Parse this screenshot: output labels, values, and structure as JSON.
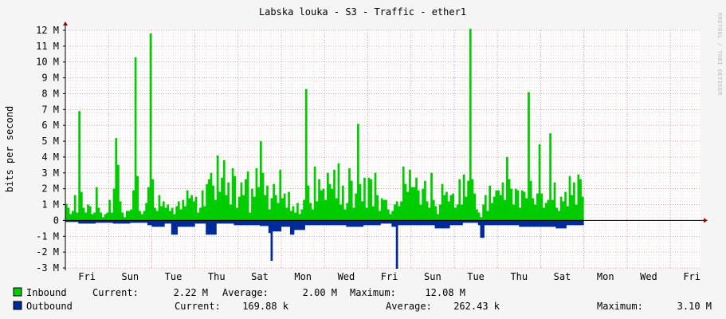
{
  "chart_data": {
    "type": "area",
    "title": "Labska louka - S3 - Traffic - ether1",
    "ylabel": "bits per second",
    "watermark": "RRDTOOL / TOBI OETIKER",
    "ylim": [
      -3000000,
      12000000
    ],
    "y_ticks": [
      {
        "value": 12000000,
        "label": "12 M"
      },
      {
        "value": 11000000,
        "label": "11 M"
      },
      {
        "value": 10000000,
        "label": "10 M"
      },
      {
        "value": 9000000,
        "label": "9 M"
      },
      {
        "value": 8000000,
        "label": "8 M"
      },
      {
        "value": 7000000,
        "label": "7 M"
      },
      {
        "value": 6000000,
        "label": "6 M"
      },
      {
        "value": 5000000,
        "label": "5 M"
      },
      {
        "value": 4000000,
        "label": "4 M"
      },
      {
        "value": 3000000,
        "label": "3 M"
      },
      {
        "value": 2000000,
        "label": "2 M"
      },
      {
        "value": 1000000,
        "label": "1 M"
      },
      {
        "value": 0,
        "label": "0"
      },
      {
        "value": -1000000,
        "label": "-1 M"
      },
      {
        "value": -2000000,
        "label": "-2 M"
      },
      {
        "value": -3000000,
        "label": "-3 M"
      }
    ],
    "x_range": [
      0,
      14.7
    ],
    "x_ticks": [
      {
        "day": 0.5,
        "label": "Fri"
      },
      {
        "day": 1.5,
        "label": "Sun"
      },
      {
        "day": 2.5,
        "label": "Tue"
      },
      {
        "day": 3.5,
        "label": "Thu"
      },
      {
        "day": 4.5,
        "label": "Sat"
      },
      {
        "day": 5.5,
        "label": "Mon"
      },
      {
        "day": 6.5,
        "label": "Wed"
      },
      {
        "day": 7.5,
        "label": "Fri"
      },
      {
        "day": 8.5,
        "label": "Sun"
      },
      {
        "day": 9.5,
        "label": "Tue"
      },
      {
        "day": 10.5,
        "label": "Thu"
      },
      {
        "day": 11.5,
        "label": "Sat"
      },
      {
        "day": 12.5,
        "label": "Mon"
      },
      {
        "day": 13.5,
        "label": "Wed"
      },
      {
        "day": 14.5,
        "label": "Fri"
      }
    ],
    "grid": true,
    "series": [
      {
        "name": "Inbound",
        "color": "#00cc00",
        "samples": [
          [
            0,
            1.05
          ],
          [
            0.05,
            0.8
          ],
          [
            0.1,
            0.4
          ],
          [
            0.15,
            0.6
          ],
          [
            0.2,
            1.6
          ],
          [
            0.25,
            0.5
          ],
          [
            0.3,
            6.9
          ],
          [
            0.35,
            1.8
          ],
          [
            0.4,
            0.8
          ],
          [
            0.45,
            0.5
          ],
          [
            0.5,
            1.0
          ],
          [
            0.55,
            0.9
          ],
          [
            0.6,
            0.4
          ],
          [
            0.65,
            0.5
          ],
          [
            0.7,
            2.1
          ],
          [
            0.75,
            0.8
          ],
          [
            0.8,
            0.5
          ],
          [
            0.85,
            0.2
          ],
          [
            0.9,
            0.4
          ],
          [
            0.95,
            0.5
          ],
          [
            1.0,
            1.3
          ],
          [
            1.05,
            0.5
          ],
          [
            1.1,
            2.0
          ],
          [
            1.15,
            5.2
          ],
          [
            1.2,
            3.5
          ],
          [
            1.25,
            1.2
          ],
          [
            1.3,
            0.5
          ],
          [
            1.35,
            0.2
          ],
          [
            1.4,
            0.6
          ],
          [
            1.45,
            0.6
          ],
          [
            1.5,
            0.7
          ],
          [
            1.55,
            1.9
          ],
          [
            1.6,
            10.3
          ],
          [
            1.65,
            2.8
          ],
          [
            1.7,
            0.6
          ],
          [
            1.75,
            0.4
          ],
          [
            1.8,
            0.6
          ],
          [
            1.85,
            1.1
          ],
          [
            1.9,
            2.1
          ],
          [
            1.95,
            11.8
          ],
          [
            2.0,
            2.6
          ],
          [
            2.05,
            0.8
          ],
          [
            2.1,
            0.6
          ],
          [
            2.15,
            1.6
          ],
          [
            2.2,
            0.9
          ],
          [
            2.25,
            1.2
          ],
          [
            2.3,
            0.8
          ],
          [
            2.35,
            1.0
          ],
          [
            2.4,
            0.6
          ],
          [
            2.45,
            0.8
          ],
          [
            2.5,
            0.4
          ],
          [
            2.55,
            0.9
          ],
          [
            2.6,
            1.2
          ],
          [
            2.65,
            0.7
          ],
          [
            2.7,
            1.3
          ],
          [
            2.75,
            0.9
          ],
          [
            2.8,
            1.9
          ],
          [
            2.85,
            1.4
          ],
          [
            2.9,
            1.6
          ],
          [
            2.95,
            1.2
          ],
          [
            3.0,
            1.5
          ],
          [
            3.05,
            0.5
          ],
          [
            3.1,
            0.8
          ],
          [
            3.15,
            1.9
          ],
          [
            3.2,
            0.9
          ],
          [
            3.25,
            2.3
          ],
          [
            3.3,
            2.6
          ],
          [
            3.35,
            3.0
          ],
          [
            3.4,
            2.2
          ],
          [
            3.45,
            1.3
          ],
          [
            3.5,
            4.1
          ],
          [
            3.55,
            1.8
          ],
          [
            3.6,
            2.7
          ],
          [
            3.65,
            3.8
          ],
          [
            3.7,
            1.6
          ],
          [
            3.75,
            2.4
          ],
          [
            3.8,
            1.0
          ],
          [
            3.85,
            3.3
          ],
          [
            3.9,
            2.8
          ],
          [
            3.95,
            0.8
          ],
          [
            4.0,
            1.5
          ],
          [
            4.05,
            2.4
          ],
          [
            4.1,
            1.6
          ],
          [
            4.15,
            2.6
          ],
          [
            4.2,
            3.1
          ],
          [
            4.25,
            0.5
          ],
          [
            4.3,
            2.0
          ],
          [
            4.35,
            1.5
          ],
          [
            4.4,
            3.3
          ],
          [
            4.45,
            2.1
          ],
          [
            4.5,
            5.0
          ],
          [
            4.55,
            3.0
          ],
          [
            4.6,
            1.6
          ],
          [
            4.65,
            2.2
          ],
          [
            4.7,
            0.7
          ],
          [
            4.75,
            1.4
          ],
          [
            4.8,
            2.3
          ],
          [
            4.85,
            1.6
          ],
          [
            4.9,
            1.1
          ],
          [
            4.95,
            3.2
          ],
          [
            5.0,
            1.4
          ],
          [
            5.05,
            1.7
          ],
          [
            5.1,
            0.8
          ],
          [
            5.15,
            1.8
          ],
          [
            5.2,
            0.6
          ],
          [
            5.25,
            0.9
          ],
          [
            5.3,
            0.5
          ],
          [
            5.35,
            1.1
          ],
          [
            5.4,
            0.4
          ],
          [
            5.45,
            0.7
          ],
          [
            5.5,
            1.3
          ],
          [
            5.55,
            8.3
          ],
          [
            5.6,
            2.2
          ],
          [
            5.65,
            1.1
          ],
          [
            5.7,
            0.7
          ],
          [
            5.75,
            3.4
          ],
          [
            5.8,
            1.2
          ],
          [
            5.85,
            2.6
          ],
          [
            5.9,
            1.9
          ],
          [
            5.95,
            2.0
          ],
          [
            6.0,
            1.3
          ],
          [
            6.05,
            3.0
          ],
          [
            6.1,
            2.3
          ],
          [
            6.15,
            2.0
          ],
          [
            6.2,
            3.2
          ],
          [
            6.25,
            1.4
          ],
          [
            6.3,
            3.6
          ],
          [
            6.35,
            1.0
          ],
          [
            6.4,
            2.2
          ],
          [
            6.45,
            0.7
          ],
          [
            6.5,
            1.1
          ],
          [
            6.55,
            3.3
          ],
          [
            6.6,
            2.5
          ],
          [
            6.65,
            0.8
          ],
          [
            6.7,
            1.7
          ],
          [
            6.75,
            6.1
          ],
          [
            6.8,
            2.3
          ],
          [
            6.85,
            1.2
          ],
          [
            6.9,
            2.7
          ],
          [
            6.95,
            0.8
          ],
          [
            7.0,
            2.7
          ],
          [
            7.05,
            2.6
          ],
          [
            7.1,
            0.9
          ],
          [
            7.15,
            3.0
          ],
          [
            7.2,
            1.6
          ],
          [
            7.25,
            0.6
          ],
          [
            7.3,
            1.4
          ],
          [
            7.35,
            1.3
          ],
          [
            7.4,
            1.3
          ],
          [
            7.45,
            0.7
          ],
          [
            7.5,
            0.4
          ],
          [
            7.55,
            0.6
          ],
          [
            7.6,
            1.0
          ],
          [
            7.65,
            1.2
          ],
          [
            7.7,
            0.9
          ],
          [
            7.75,
            1.2
          ],
          [
            7.8,
            3.4
          ],
          [
            7.85,
            2.3
          ],
          [
            7.9,
            1.8
          ],
          [
            7.95,
            3.2
          ],
          [
            8.0,
            2.1
          ],
          [
            8.05,
            2.1
          ],
          [
            8.1,
            2.7
          ],
          [
            8.15,
            1.9
          ],
          [
            8.2,
            1.0
          ],
          [
            8.25,
            2.0
          ],
          [
            8.3,
            2.5
          ],
          [
            8.35,
            1.2
          ],
          [
            8.4,
            0.8
          ],
          [
            8.45,
            3.0
          ],
          [
            8.5,
            1.3
          ],
          [
            8.55,
            0.9
          ],
          [
            8.6,
            0.4
          ],
          [
            8.65,
            1.0
          ],
          [
            8.7,
            2.3
          ],
          [
            8.75,
            1.6
          ],
          [
            8.8,
            1.8
          ],
          [
            8.85,
            1.2
          ],
          [
            8.9,
            1.6
          ],
          [
            8.95,
            1.7
          ],
          [
            9.0,
            0.8
          ],
          [
            9.05,
            1.0
          ],
          [
            9.1,
            2.6
          ],
          [
            9.15,
            1.0
          ],
          [
            9.2,
            2.9
          ],
          [
            9.25,
            1.5
          ],
          [
            9.3,
            2.5
          ],
          [
            9.35,
            12.1
          ],
          [
            9.4,
            2.6
          ],
          [
            9.45,
            1.7
          ],
          [
            9.5,
            0.7
          ],
          [
            9.55,
            0.5
          ],
          [
            9.6,
            0.2
          ],
          [
            9.65,
            1.0
          ],
          [
            9.7,
            1.6
          ],
          [
            9.75,
            0.6
          ],
          [
            9.8,
            2.2
          ],
          [
            9.85,
            1.1
          ],
          [
            9.9,
            1.5
          ],
          [
            9.95,
            1.9
          ],
          [
            10.0,
            1.9
          ],
          [
            10.05,
            1.6
          ],
          [
            10.1,
            2.4
          ],
          [
            10.15,
            1.3
          ],
          [
            10.2,
            4.0
          ],
          [
            10.25,
            2.6
          ],
          [
            10.3,
            2.0
          ],
          [
            10.35,
            1.0
          ],
          [
            10.4,
            2.0
          ],
          [
            10.45,
            1.9
          ],
          [
            10.5,
            0.8
          ],
          [
            10.55,
            1.9
          ],
          [
            10.6,
            1.8
          ],
          [
            10.65,
            1.4
          ],
          [
            10.7,
            8.1
          ],
          [
            10.75,
            2.5
          ],
          [
            10.8,
            1.4
          ],
          [
            10.85,
            1.0
          ],
          [
            10.9,
            1.7
          ],
          [
            10.95,
            4.8
          ],
          [
            11.0,
            1.7
          ],
          [
            11.05,
            0.8
          ],
          [
            11.1,
            1.1
          ],
          [
            11.15,
            1.3
          ],
          [
            11.2,
            5.5
          ],
          [
            11.25,
            1.3
          ],
          [
            11.3,
            2.4
          ],
          [
            11.35,
            0.8
          ],
          [
            11.4,
            0.6
          ],
          [
            11.45,
            1.5
          ],
          [
            11.5,
            1.2
          ],
          [
            11.55,
            1.8
          ],
          [
            11.6,
            0.9
          ],
          [
            11.65,
            2.8
          ],
          [
            11.7,
            1.6
          ],
          [
            11.75,
            2.4
          ],
          [
            11.8,
            1.0
          ],
          [
            11.85,
            2.9
          ],
          [
            11.9,
            2.6
          ],
          [
            11.95,
            1.5
          ]
        ]
      },
      {
        "name": "Outbound",
        "color": "#002a97",
        "samples": [
          [
            0,
            -0.1
          ],
          [
            0.3,
            -0.2
          ],
          [
            0.7,
            -0.15
          ],
          [
            1.1,
            -0.2
          ],
          [
            1.5,
            -0.15
          ],
          [
            1.9,
            -0.3
          ],
          [
            2.0,
            -0.4
          ],
          [
            2.3,
            -0.2
          ],
          [
            2.45,
            -0.9
          ],
          [
            2.6,
            -0.4
          ],
          [
            3.0,
            -0.2
          ],
          [
            3.25,
            -0.9
          ],
          [
            3.5,
            -0.2
          ],
          [
            3.9,
            -0.3
          ],
          [
            4.2,
            -0.3
          ],
          [
            4.5,
            -0.35
          ],
          [
            4.7,
            -0.8
          ],
          [
            4.75,
            -2.55
          ],
          [
            4.8,
            -0.7
          ],
          [
            5.0,
            -0.4
          ],
          [
            5.2,
            -0.9
          ],
          [
            5.3,
            -0.6
          ],
          [
            5.55,
            -0.3
          ],
          [
            6.0,
            -0.3
          ],
          [
            6.5,
            -0.4
          ],
          [
            6.9,
            -0.3
          ],
          [
            7.3,
            -0.2
          ],
          [
            7.55,
            -0.4
          ],
          [
            7.65,
            -3.05
          ],
          [
            7.7,
            -0.3
          ],
          [
            8.1,
            -0.3
          ],
          [
            8.55,
            -0.5
          ],
          [
            8.9,
            -0.3
          ],
          [
            9.2,
            -0.15
          ],
          [
            9.55,
            -0.3
          ],
          [
            9.6,
            -1.1
          ],
          [
            9.7,
            -0.3
          ],
          [
            10.1,
            -0.3
          ],
          [
            10.5,
            -0.4
          ],
          [
            11.0,
            -0.4
          ],
          [
            11.35,
            -0.5
          ],
          [
            11.6,
            -0.3
          ],
          [
            11.95,
            -0.3
          ]
        ]
      }
    ]
  },
  "legend": [
    {
      "swatch": "#00cc00",
      "name": "Inbound",
      "current_label": "Current:",
      "current": "2.22 M",
      "average_label": "Average:",
      "average": "2.00 M",
      "maximum_label": "Maximum:",
      "maximum": "12.08 M"
    },
    {
      "swatch": "#002a97",
      "name": "Outbound",
      "current_label": "Current:",
      "current": "169.88 k",
      "average_label": "Average:",
      "average": "262.43 k",
      "maximum_label": "Maximum:",
      "maximum": "3.10 M"
    }
  ]
}
